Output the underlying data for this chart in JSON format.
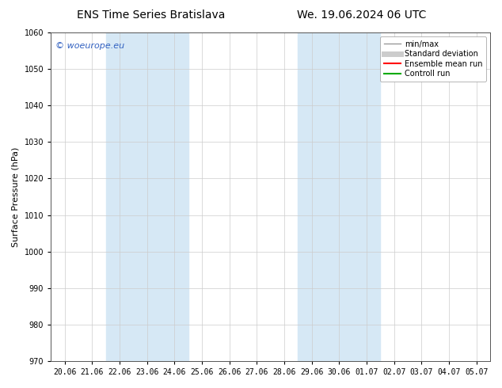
{
  "title_left": "ENS Time Series Bratislava",
  "title_right": "We. 19.06.2024 06 UTC",
  "ylabel": "Surface Pressure (hPa)",
  "ylim": [
    970,
    1060
  ],
  "yticks": [
    970,
    980,
    990,
    1000,
    1010,
    1020,
    1030,
    1040,
    1050,
    1060
  ],
  "xtick_labels": [
    "20.06",
    "21.06",
    "22.06",
    "23.06",
    "24.06",
    "25.06",
    "26.06",
    "27.06",
    "28.06",
    "29.06",
    "30.06",
    "01.07",
    "02.07",
    "03.07",
    "04.07",
    "05.07"
  ],
  "shaded_bands": [
    {
      "x_start_label": "22.06",
      "x_end_label": "24.06"
    },
    {
      "x_start_label": "29.06",
      "x_end_label": "01.07"
    }
  ],
  "shaded_color": "#d6e8f5",
  "watermark_text": "© woeurope.eu",
  "watermark_color": "#3060c0",
  "legend_entries": [
    {
      "label": "min/max",
      "color": "#999999",
      "lw": 1.0,
      "style": "solid"
    },
    {
      "label": "Standard deviation",
      "color": "#cccccc",
      "lw": 5.0,
      "style": "solid"
    },
    {
      "label": "Ensemble mean run",
      "color": "#ff0000",
      "lw": 1.5,
      "style": "solid"
    },
    {
      "label": "Controll run",
      "color": "#00aa00",
      "lw": 1.5,
      "style": "solid"
    }
  ],
  "bg_color": "#ffffff",
  "grid_color": "#cccccc",
  "title_fontsize": 10,
  "axis_fontsize": 8,
  "tick_fontsize": 7
}
